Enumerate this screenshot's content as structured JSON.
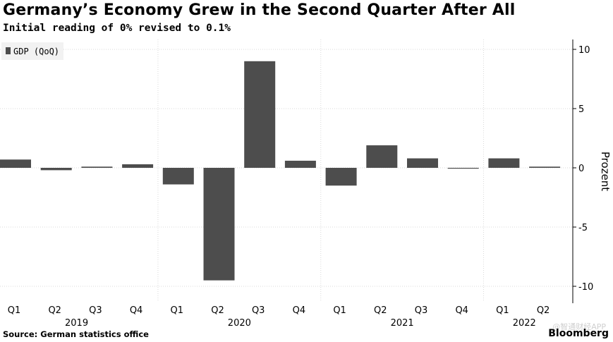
{
  "title": "Germany’s Economy Grew in the Second Quarter After All",
  "subtitle": "Initial reading of 0% revised to 0.1%",
  "source": "Source: German statistics office",
  "brand": "Bloomberg",
  "watermark": "@智通财经APP",
  "colors": {
    "bar": "#4d4d4d",
    "grid": "#d9d9d9",
    "axis": "#000000",
    "legendBg": "#f2f2f2"
  },
  "chart_data": {
    "type": "bar",
    "title": "Germany’s Economy Grew in the Second Quarter After All",
    "ylabel": "Prozent",
    "ylim": [
      -11,
      11
    ],
    "yticks": [
      10,
      5,
      0,
      -5,
      -10
    ],
    "legend": {
      "label": "GDP (QoQ)",
      "position": "top-left"
    },
    "categories": [
      "Q1",
      "Q2",
      "Q3",
      "Q4",
      "Q1",
      "Q2",
      "Q3",
      "Q4",
      "Q1",
      "Q2",
      "Q3",
      "Q4",
      "Q1",
      "Q2"
    ],
    "years": [
      {
        "label": "2019",
        "start": 0,
        "end": 3
      },
      {
        "label": "2020",
        "start": 4,
        "end": 7
      },
      {
        "label": "2021",
        "start": 8,
        "end": 11
      },
      {
        "label": "2022",
        "start": 12,
        "end": 13
      }
    ],
    "series": [
      {
        "name": "GDP (QoQ)",
        "values": [
          0.7,
          -0.2,
          0.1,
          0.3,
          -1.4,
          -9.5,
          9.0,
          0.6,
          -1.5,
          1.9,
          0.8,
          -0.05,
          0.8,
          0.1
        ]
      }
    ]
  }
}
